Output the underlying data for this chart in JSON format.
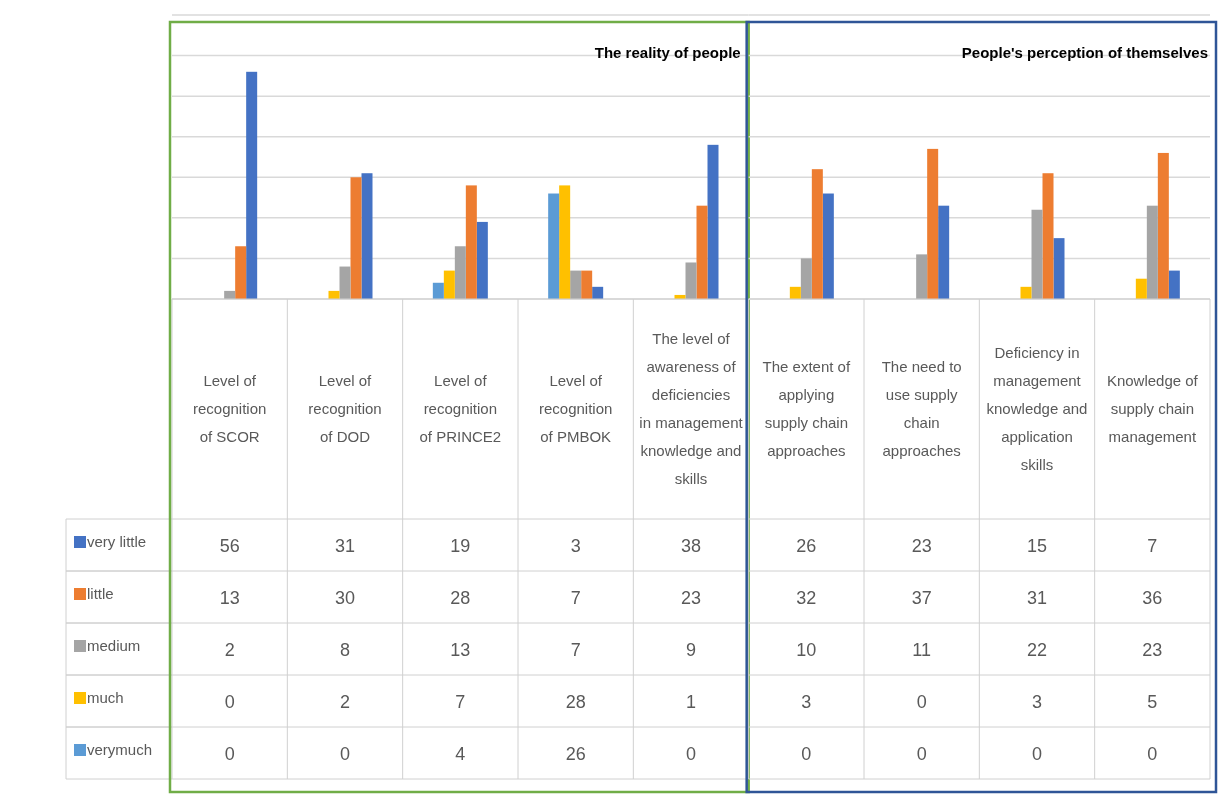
{
  "chart_data": [
    {
      "type": "bar",
      "title": "The reality of people",
      "categories": [
        "Level of recognition of SCOR",
        "Level of recognition of DOD",
        "Level of recognition of PRINCE2",
        "Level of recognition of PMBOK",
        "The level of awareness of deficiencies in management knowledge and skills"
      ],
      "series": [
        {
          "name": "very little",
          "color": "#4472c4",
          "values": [
            56,
            31,
            19,
            3,
            38
          ]
        },
        {
          "name": "little",
          "color": "#ed7d31",
          "values": [
            13,
            30,
            28,
            7,
            23
          ]
        },
        {
          "name": "medium",
          "color": "#a5a5a5",
          "values": [
            2,
            8,
            13,
            7,
            9
          ]
        },
        {
          "name": "much",
          "color": "#ffc000",
          "values": [
            0,
            2,
            7,
            28,
            1
          ]
        },
        {
          "name": "verymuch",
          "color": "#5b9bd5",
          "values": [
            0,
            0,
            4,
            26,
            0
          ]
        }
      ],
      "ylim": [
        0,
        70
      ],
      "yticks": [
        {
          "value": 0,
          "label": null
        },
        {
          "value": 10,
          "label": null
        },
        {
          "value": 20,
          "label": null
        },
        {
          "value": 30,
          "label": null
        },
        {
          "value": 40,
          "label": null
        },
        {
          "value": 50,
          "label": null
        },
        {
          "value": 60,
          "label": null
        },
        {
          "value": 70,
          "label": null
        }
      ],
      "grid": "y",
      "data_labels": true,
      "legend": "bottom"
    },
    {
      "type": "bar",
      "title": "People's perception of themselves",
      "categories": [
        "The extent of applying supply chain approaches",
        "The need to use supply chain approaches",
        "Deficiency in management knowledge and application skills",
        "Knowledge of supply chain management"
      ],
      "series": [
        {
          "color": "#4472c4",
          "values": [
            26,
            23,
            15,
            7
          ]
        },
        {
          "color": "#ed7d31",
          "values": [
            32,
            37,
            31,
            36
          ]
        },
        {
          "color": "#a5a5a5",
          "values": [
            10,
            11,
            22,
            23
          ]
        },
        {
          "color": "#ffc000",
          "values": [
            3,
            0,
            3,
            5
          ]
        },
        {
          "color": "#5b9bd5",
          "values": [
            0,
            0,
            0,
            0
          ]
        }
      ],
      "ylim": [
        0,
        70
      ],
      "yticks": [
        {
          "value": 0,
          "label": null
        },
        {
          "value": 10,
          "label": null
        },
        {
          "value": 20,
          "label": null
        },
        {
          "value": 30,
          "label": null
        },
        {
          "value": 40,
          "label": null
        },
        {
          "value": 50,
          "label": null
        },
        {
          "value": 60,
          "label": null
        },
        {
          "value": 70,
          "label": null
        }
      ],
      "grid": "y",
      "data_labels": true
    }
  ]
}
